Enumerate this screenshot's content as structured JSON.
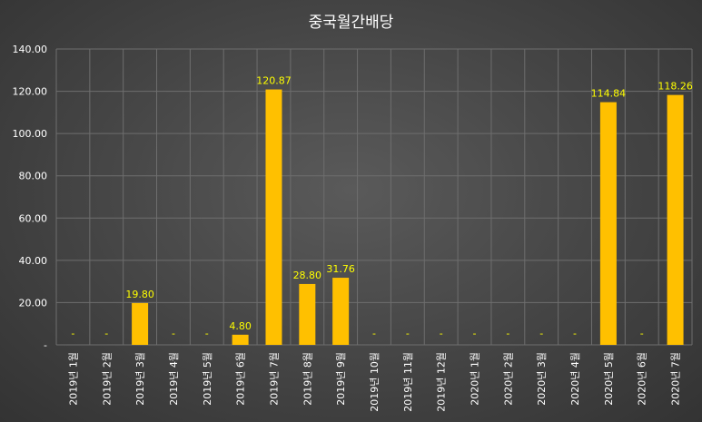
{
  "chart_data": {
    "type": "bar",
    "title": "중국월간배당",
    "xlabel": "",
    "ylabel": "",
    "ylim": [
      0,
      140
    ],
    "y_ticks": [
      {
        "value": 0,
        "label": "-"
      },
      {
        "value": 20,
        "label": "20.00"
      },
      {
        "value": 40,
        "label": "40.00"
      },
      {
        "value": 60,
        "label": "60.00"
      },
      {
        "value": 80,
        "label": "80.00"
      },
      {
        "value": 100,
        "label": "100.00"
      },
      {
        "value": 120,
        "label": "120.00"
      },
      {
        "value": 140,
        "label": "140.00"
      }
    ],
    "categories": [
      "2019년 1월",
      "2019년 2월",
      "2019년 3월",
      "2019년 4월",
      "2019년 5월",
      "2019년 6월",
      "2019년 7월",
      "2019년 8월",
      "2019년 9월",
      "2019년 10월",
      "2019년 11월",
      "2019년 12월",
      "2020년 1월",
      "2020년 2월",
      "2020년 3월",
      "2020년 4월",
      "2020년 5월",
      "2020년 6월",
      "2020년 7월"
    ],
    "values": [
      0,
      0,
      19.8,
      0,
      0,
      4.8,
      120.87,
      28.8,
      31.76,
      0,
      0,
      0,
      0,
      0,
      0,
      0,
      114.84,
      0,
      118.26
    ],
    "data_labels": [
      "-",
      "-",
      "19.80",
      "-",
      "-",
      "4.80",
      "120.87",
      "28.80",
      "31.76",
      "-",
      "-",
      "-",
      "-",
      "-",
      "-",
      "-",
      "114.84",
      "-",
      "118.26"
    ],
    "grid": true,
    "legend": "none",
    "colors": {
      "bar": "#FFC000",
      "data_label": "#FFFF00",
      "text": "#FFFFFF",
      "gridline": "#6E6E6E"
    }
  }
}
